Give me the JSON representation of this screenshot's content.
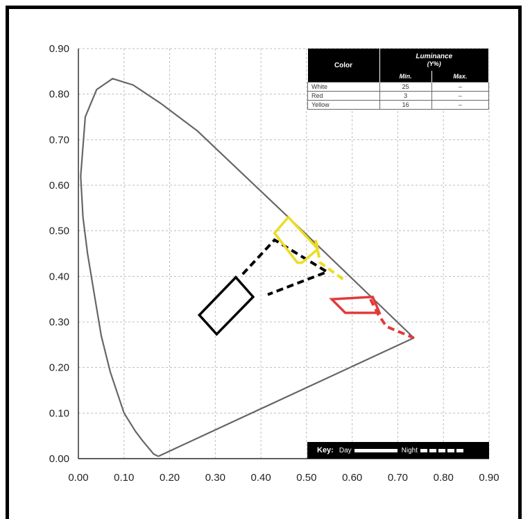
{
  "chart_data": {
    "type": "scatter",
    "xlim": [
      0.0,
      0.9
    ],
    "ylim": [
      0.0,
      0.9
    ],
    "x_ticks": [
      "0.00",
      "0.10",
      "0.20",
      "0.30",
      "0.40",
      "0.50",
      "0.60",
      "0.70",
      "0.80",
      "0.90"
    ],
    "y_ticks": [
      "0.00",
      "0.10",
      "0.20",
      "0.30",
      "0.40",
      "0.50",
      "0.60",
      "0.70",
      "0.80",
      "0.90"
    ],
    "grid": true,
    "spectral_locus": [
      [
        0.175,
        0.005
      ],
      [
        0.165,
        0.01
      ],
      [
        0.14,
        0.04
      ],
      [
        0.125,
        0.06
      ],
      [
        0.1,
        0.1
      ],
      [
        0.07,
        0.19
      ],
      [
        0.05,
        0.27
      ],
      [
        0.035,
        0.36
      ],
      [
        0.02,
        0.45
      ],
      [
        0.01,
        0.53
      ],
      [
        0.005,
        0.62
      ],
      [
        0.015,
        0.75
      ],
      [
        0.04,
        0.81
      ],
      [
        0.075,
        0.834
      ],
      [
        0.12,
        0.82
      ],
      [
        0.18,
        0.78
      ],
      [
        0.26,
        0.72
      ],
      [
        0.46,
        0.53
      ],
      [
        0.735,
        0.265
      ],
      [
        0.175,
        0.005
      ]
    ],
    "series": [
      {
        "color": "#000000",
        "day": [
          [
            0.265,
            0.315
          ],
          [
            0.345,
            0.398
          ],
          [
            0.383,
            0.355
          ],
          [
            0.303,
            0.273
          ]
        ],
        "night": [
          [
            0.36,
            0.405
          ],
          [
            0.43,
            0.48
          ],
          [
            0.545,
            0.41
          ],
          [
            0.415,
            0.36
          ]
        ]
      },
      {
        "color": "#eddc22",
        "day": [
          [
            0.43,
            0.495
          ],
          [
            0.46,
            0.53
          ],
          [
            0.525,
            0.46
          ],
          [
            0.49,
            0.43
          ],
          [
            0.48,
            0.43
          ]
        ],
        "night": [
          [
            0.52,
            0.48
          ],
          [
            0.53,
            0.43
          ],
          [
            0.585,
            0.39
          ]
        ]
      },
      {
        "color": "#e23a3a",
        "day": [
          [
            0.555,
            0.35
          ],
          [
            0.645,
            0.355
          ],
          [
            0.66,
            0.32
          ],
          [
            0.585,
            0.32
          ]
        ],
        "night": [
          [
            0.64,
            0.35
          ],
          [
            0.655,
            0.32
          ],
          [
            0.675,
            0.29
          ],
          [
            0.735,
            0.265
          ]
        ]
      }
    ],
    "table": {
      "header_color": "Color",
      "header_luminance": "Luminance",
      "header_luminance_unit": "(Y%)",
      "header_min": "Min.",
      "header_max": "Max.",
      "rows": [
        {
          "name": "White",
          "min": "25",
          "max": "–"
        },
        {
          "name": "Red",
          "min": "3",
          "max": "–"
        },
        {
          "name": "Yellow",
          "min": "16",
          "max": "–"
        }
      ]
    },
    "key": {
      "title": "Key:",
      "day_label": "Day",
      "night_label": "Night"
    }
  }
}
